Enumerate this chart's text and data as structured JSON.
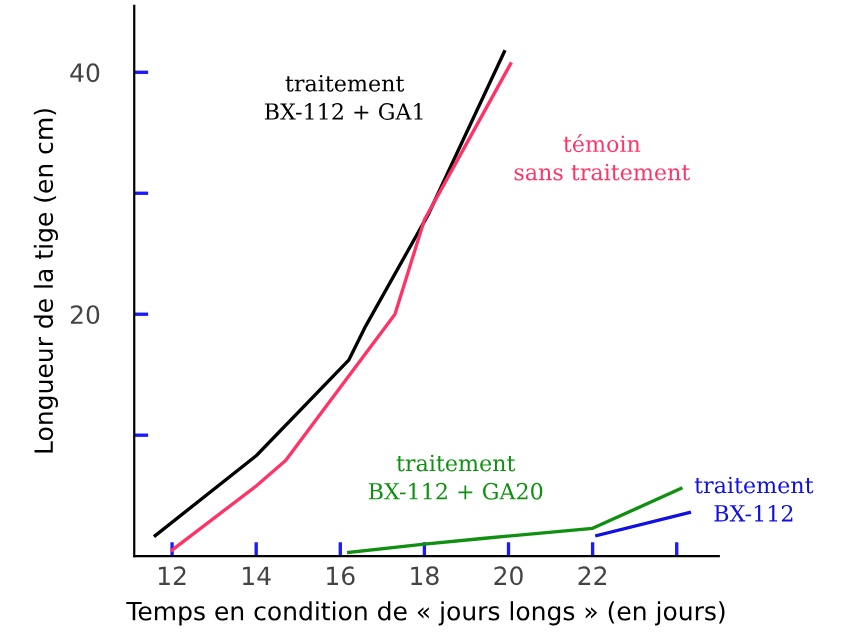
{
  "chart_data": {
    "type": "line",
    "xlabel": "Temps en condition de « jours longs » (en jours)",
    "ylabel": "Longueur de la tige (en cm)",
    "xlim": [
      11.1,
      25
    ],
    "ylim": [
      0,
      45.5
    ],
    "xticks": [
      12,
      14,
      16,
      18,
      20,
      22,
      {
        "value": 24,
        "label": null
      }
    ],
    "yticks": [
      {
        "value": 10,
        "label": null
      },
      20,
      {
        "value": 30,
        "label": null
      },
      40
    ],
    "grid": false,
    "legend": false,
    "marker": "none",
    "line_style": "solid",
    "series": [
      {
        "name": "traitement\nBX-112 + GA1",
        "color": "#000000",
        "x": [
          11.6,
          14,
          16.2,
          16.6,
          18.1,
          19.9
        ],
        "values": [
          1.7,
          8.3,
          16.2,
          19,
          28.3,
          41.7
        ]
      },
      {
        "name": "témoin\nsans traitement",
        "color": "#ff3366",
        "x": [
          12,
          14,
          14.7,
          17.3,
          18,
          20.05
        ],
        "values": [
          0.5,
          5.8,
          7.9,
          20,
          27.8,
          40.7
        ]
      },
      {
        "name": "traitement\nBX-112 + GA20",
        "color": "#109010",
        "x": [
          16.2,
          18,
          19.5,
          22,
          24.1
        ],
        "values": [
          0.3,
          1.0,
          1.5,
          2.3,
          5.6
        ]
      },
      {
        "name": "traitement\nBX-112",
        "color": "#1010e0",
        "x": [
          22.1,
          24.3
        ],
        "values": [
          1.7,
          3.6
        ]
      }
    ]
  }
}
